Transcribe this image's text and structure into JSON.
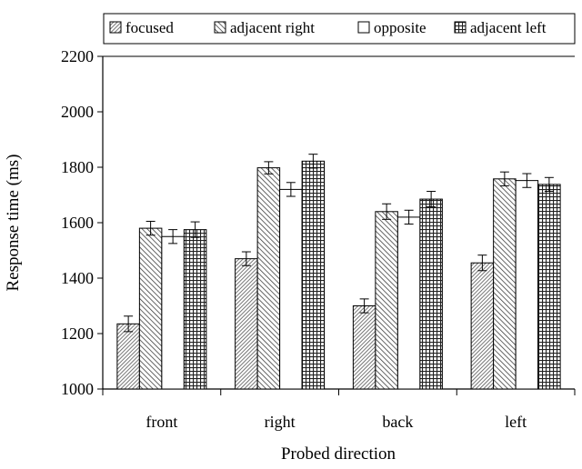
{
  "chart_data": {
    "type": "bar",
    "xlabel": "Probed direction",
    "ylabel": "Response time (ms)",
    "ylim": [
      1000,
      2200
    ],
    "yticks": [
      1000,
      1200,
      1400,
      1600,
      1800,
      2000,
      2200
    ],
    "categories": [
      "front",
      "right",
      "back",
      "left"
    ],
    "legend_position": "top",
    "grid": false,
    "series": [
      {
        "name": "focused",
        "pattern": "diagonal-dense",
        "values": [
          1235,
          1470,
          1300,
          1455
        ],
        "errors": [
          28,
          25,
          25,
          28
        ]
      },
      {
        "name": "adjacent right",
        "pattern": "diagonal-hatch",
        "values": [
          1580,
          1798,
          1640,
          1758
        ],
        "errors": [
          25,
          22,
          28,
          25
        ]
      },
      {
        "name": "opposite",
        "pattern": "white",
        "values": [
          1550,
          1720,
          1620,
          1752
        ],
        "errors": [
          25,
          25,
          25,
          25
        ]
      },
      {
        "name": "adjacent left",
        "pattern": "grid",
        "values": [
          1575,
          1822,
          1685,
          1738
        ],
        "errors": [
          28,
          25,
          28,
          25
        ]
      }
    ]
  }
}
